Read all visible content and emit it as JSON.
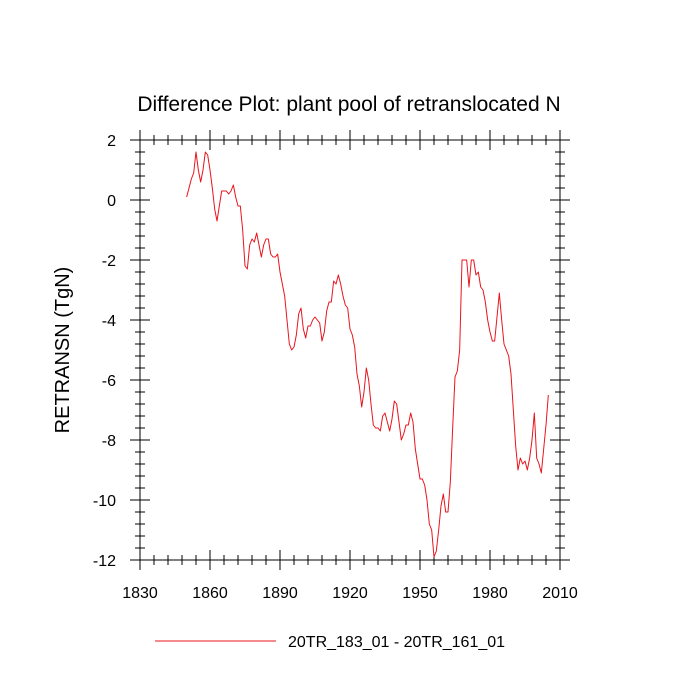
{
  "chart_data": {
    "type": "line",
    "title": "Difference Plot: plant pool of retranslocated N",
    "xlabel": "",
    "ylabel": "RETRANSN  (TgN)",
    "xlim": [
      1830,
      2010
    ],
    "ylim": [
      -12,
      2
    ],
    "xticks": [
      1830,
      1860,
      1890,
      1920,
      1950,
      1980,
      2010
    ],
    "yticks": [
      2,
      0,
      -2,
      -4,
      -6,
      -8,
      -10,
      -12
    ],
    "xtick_labels": [
      "1830",
      "1860",
      "1890",
      "1920",
      "1950",
      "1980",
      "2010"
    ],
    "ytick_labels": [
      "2",
      "0",
      "-2",
      "-4",
      "-6",
      "-8",
      "-10",
      "-12"
    ],
    "grid": false,
    "legend_position": "bottom",
    "series": [
      {
        "name": "20TR_183_01 - 20TR_161_01",
        "color": "#e8141c",
        "x": [
          1850,
          1851,
          1852,
          1853,
          1854,
          1855,
          1856,
          1857,
          1858,
          1859,
          1860,
          1861,
          1862,
          1863,
          1864,
          1865,
          1866,
          1867,
          1868,
          1869,
          1870,
          1871,
          1872,
          1873,
          1874,
          1875,
          1876,
          1877,
          1878,
          1879,
          1880,
          1881,
          1882,
          1883,
          1884,
          1885,
          1886,
          1887,
          1888,
          1889,
          1890,
          1891,
          1892,
          1893,
          1894,
          1895,
          1896,
          1897,
          1898,
          1899,
          1900,
          1901,
          1902,
          1903,
          1904,
          1905,
          1906,
          1907,
          1908,
          1909,
          1910,
          1911,
          1912,
          1913,
          1914,
          1915,
          1916,
          1917,
          1918,
          1919,
          1920,
          1921,
          1922,
          1923,
          1924,
          1925,
          1926,
          1927,
          1928,
          1929,
          1930,
          1931,
          1932,
          1933,
          1934,
          1935,
          1936,
          1937,
          1938,
          1939,
          1940,
          1941,
          1942,
          1943,
          1944,
          1945,
          1946,
          1947,
          1948,
          1949,
          1950,
          1951,
          1952,
          1953,
          1954,
          1955,
          1956,
          1957,
          1958,
          1959,
          1960,
          1961,
          1962,
          1963,
          1964,
          1965,
          1966,
          1967,
          1968,
          1969,
          1970,
          1971,
          1972,
          1973,
          1974,
          1975,
          1976,
          1977,
          1978,
          1979,
          1980,
          1981,
          1982,
          1983,
          1984,
          1985,
          1986,
          1987,
          1988,
          1989,
          1990,
          1991,
          1992,
          1993,
          1994,
          1995,
          1996,
          1997,
          1998,
          1999,
          2000,
          2001,
          2002,
          2003,
          2004,
          2005
        ],
        "y": [
          0.1,
          0.4,
          0.7,
          0.9,
          1.6,
          1.0,
          0.6,
          1.0,
          1.6,
          1.5,
          1.0,
          0.4,
          -0.3,
          -0.7,
          -0.2,
          0.3,
          0.3,
          0.3,
          0.2,
          0.3,
          0.5,
          0.1,
          -0.2,
          -0.2,
          -1.0,
          -2.2,
          -2.3,
          -1.5,
          -1.3,
          -1.4,
          -1.1,
          -1.5,
          -1.9,
          -1.5,
          -1.3,
          -1.3,
          -1.8,
          -1.9,
          -1.9,
          -1.8,
          -2.4,
          -2.8,
          -3.2,
          -4.0,
          -4.8,
          -5.0,
          -4.9,
          -4.5,
          -3.8,
          -3.6,
          -4.3,
          -4.6,
          -4.2,
          -4.2,
          -4.0,
          -3.9,
          -4.0,
          -4.1,
          -4.7,
          -4.4,
          -3.7,
          -3.4,
          -3.4,
          -2.7,
          -2.8,
          -2.5,
          -2.8,
          -3.2,
          -3.5,
          -3.6,
          -4.3,
          -4.5,
          -4.9,
          -5.8,
          -6.2,
          -6.9,
          -6.4,
          -5.6,
          -6.0,
          -6.8,
          -7.5,
          -7.6,
          -7.6,
          -7.7,
          -7.2,
          -7.1,
          -7.4,
          -7.7,
          -7.3,
          -6.7,
          -6.8,
          -7.4,
          -8.0,
          -7.8,
          -7.5,
          -7.5,
          -7.1,
          -7.4,
          -8.3,
          -8.8,
          -9.3,
          -9.3,
          -9.5,
          -10.0,
          -10.8,
          -11.0,
          -11.9,
          -11.7,
          -11.0,
          -10.2,
          -9.8,
          -10.4,
          -10.4,
          -9.4,
          -7.6,
          -5.9,
          -5.7,
          -5.0,
          -2.0,
          -2.0,
          -2.0,
          -2.9,
          -2.0,
          -2.0,
          -2.5,
          -2.4,
          -2.9,
          -3.0,
          -3.4,
          -4.0,
          -4.4,
          -4.7,
          -4.7,
          -3.9,
          -3.1,
          -4.0,
          -4.8,
          -5.0,
          -5.2,
          -5.8,
          -7.0,
          -8.2,
          -9.0,
          -8.6,
          -8.8,
          -8.7,
          -9.0,
          -8.6,
          -8.0,
          -7.1,
          -8.6,
          -8.8,
          -9.1,
          -8.3,
          -7.5,
          -6.5
        ]
      }
    ]
  }
}
